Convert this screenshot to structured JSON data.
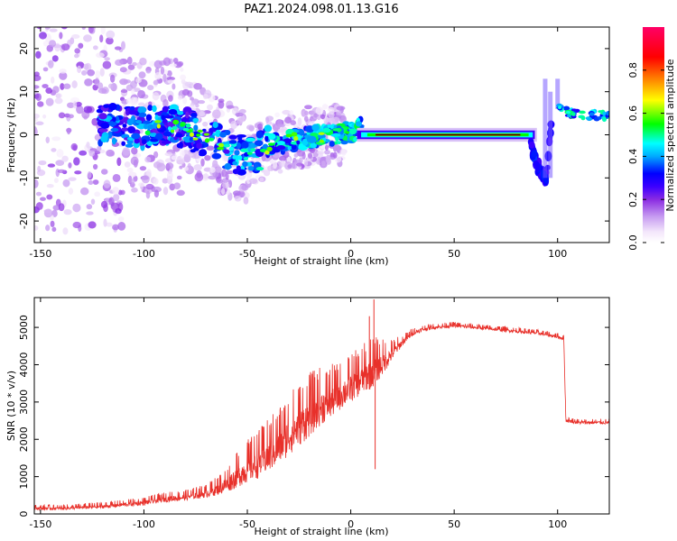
{
  "title": "PAZ1.2024.098.01.13.G16",
  "chart_data": [
    {
      "type": "heatmap",
      "title": "",
      "xlabel": "Height of straight line (km)",
      "ylabel": "Frequency (Hz)",
      "xlim": [
        -153,
        125
      ],
      "ylim": [
        -25,
        25
      ],
      "xticks": [
        -150,
        -100,
        -50,
        0,
        50,
        100
      ],
      "yticks": [
        -20,
        -10,
        0,
        10,
        20
      ],
      "grid": false,
      "colorbar": {
        "label": "Normalized spectral amplitude",
        "range": [
          0,
          1
        ],
        "ticks": [
          0.0,
          0.2,
          0.4,
          0.6,
          0.8
        ],
        "colormap": [
          "#ffffff",
          "#f3e6fb",
          "#c79cf1",
          "#8a2be2",
          "#3b00ff",
          "#0000ff",
          "#00ffff",
          "#00ff00",
          "#ffff00",
          "#ff8000",
          "#ff0000",
          "#ff0066"
        ]
      },
      "ridge": {
        "x": [
          -120,
          -100,
          -90,
          -80,
          -70,
          -60,
          -50,
          -40,
          -30,
          -20,
          -10,
          0,
          5,
          10,
          25,
          50,
          70,
          85,
          88,
          92,
          95,
          97,
          100,
          110,
          120,
          125
        ],
        "y": [
          2.5,
          1.5,
          2.5,
          1.5,
          -0.5,
          -3.0,
          -5.5,
          -2.5,
          -1.5,
          -0.5,
          0.0,
          0.5,
          1.5,
          0.3,
          0.0,
          0.0,
          0.0,
          -0.5,
          -4,
          -9,
          -10,
          4,
          6,
          4.5,
          4.5,
          4.5
        ]
      }
    },
    {
      "type": "line",
      "title": "",
      "xlabel": "Height of straight line (km)",
      "ylabel": "SNR (10 * v/v)",
      "xlim": [
        -153,
        125
      ],
      "ylim": [
        0,
        5800
      ],
      "xticks": [
        -150,
        -100,
        -50,
        0,
        50,
        100
      ],
      "yticks": [
        0,
        1000,
        2000,
        3000,
        4000,
        5000
      ],
      "grid": false,
      "series": [
        {
          "color": "#e8302a",
          "x": [
            -153,
            -140,
            -120,
            -110,
            -100,
            -90,
            -80,
            -70,
            -65,
            -60,
            -55,
            -50,
            -45,
            -40,
            -35,
            -30,
            -25,
            -20,
            -15,
            -10,
            -5,
            0,
            5,
            10,
            15,
            20,
            25,
            30,
            35,
            40,
            50,
            60,
            70,
            80,
            90,
            95,
            100,
            103,
            104,
            105,
            110,
            115,
            120,
            125
          ],
          "y": [
            150,
            150,
            200,
            250,
            300,
            400,
            450,
            550,
            650,
            800,
            1000,
            1200,
            1350,
            1550,
            1800,
            2100,
            2350,
            2600,
            2850,
            3000,
            3200,
            3400,
            3600,
            3800,
            4000,
            4300,
            4600,
            4850,
            4950,
            5000,
            5050,
            5000,
            4950,
            4900,
            4850,
            4800,
            4750,
            4700,
            2500,
            2500,
            2450,
            2450,
            2450,
            2450
          ],
          "noise": [
            100,
            100,
            120,
            130,
            150,
            180,
            200,
            250,
            350,
            500,
            650,
            800,
            900,
            1000,
            1100,
            1200,
            1200,
            1200,
            1100,
            1000,
            900,
            900,
            900,
            1000,
            700,
            400,
            200,
            150,
            120,
            100,
            100,
            100,
            100,
            100,
            100,
            100,
            100,
            100,
            100,
            100,
            100,
            100,
            100,
            100
          ],
          "spikes": [
            {
              "x": 11.2,
              "y": 5750
            },
            {
              "x": 11.8,
              "y": 1200
            },
            {
              "x": 9.0,
              "y": 5300
            }
          ]
        }
      ]
    }
  ]
}
